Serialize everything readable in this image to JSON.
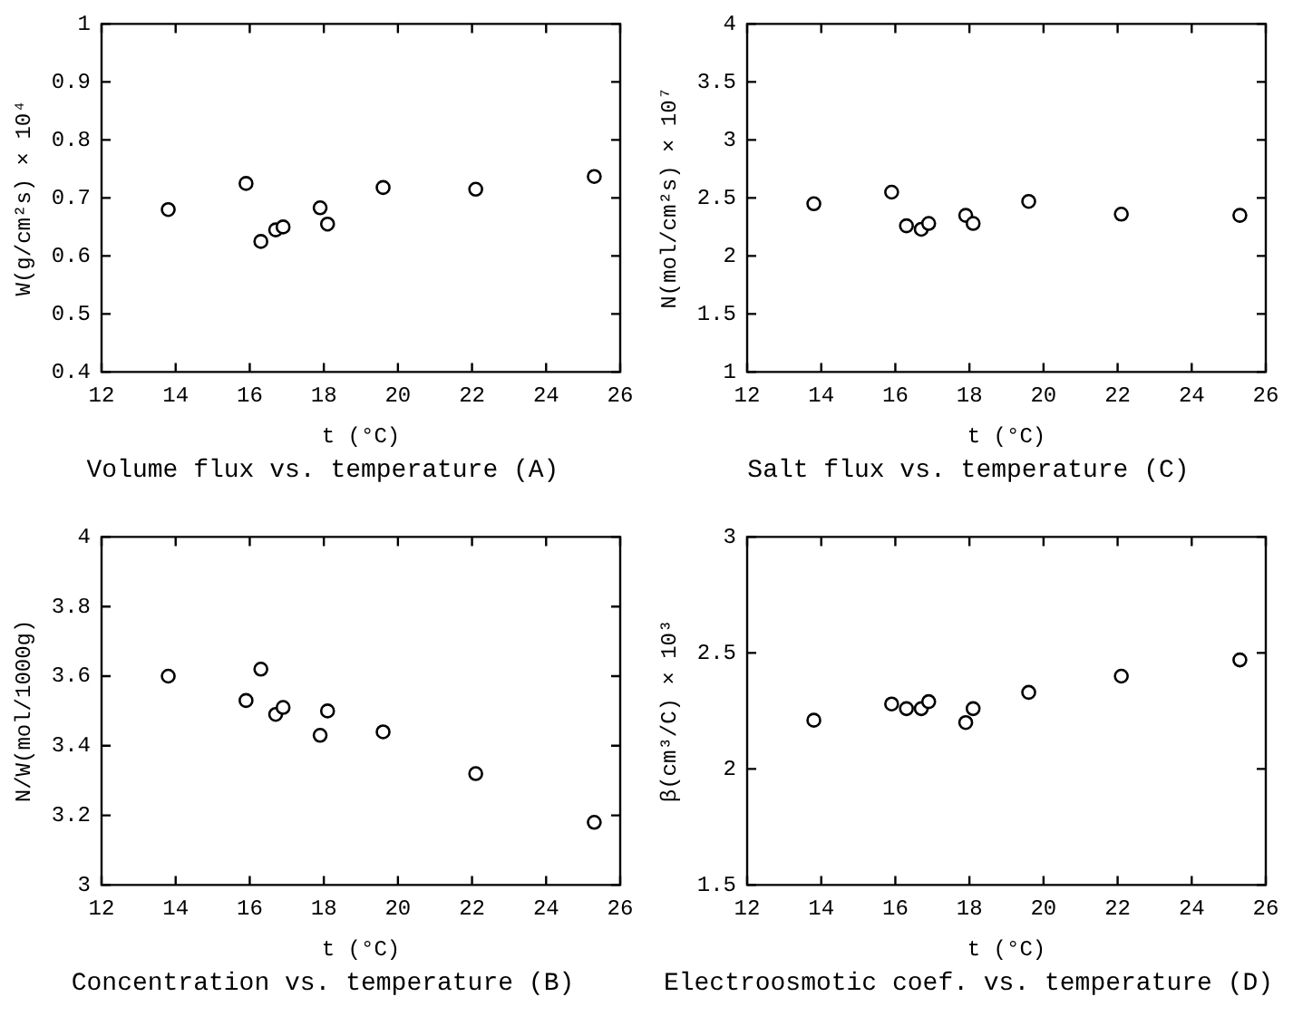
{
  "chart_data": [
    {
      "type": "scatter",
      "title": "Volume flux vs. temperature (A)",
      "xlabel": "t (°C)",
      "ylabel": "W(g/cm²s) × 10⁴",
      "x": [
        13.8,
        15.9,
        16.3,
        16.7,
        16.9,
        17.9,
        18.1,
        19.6,
        22.1,
        25.3
      ],
      "series": [
        {
          "color": "#000000",
          "values": [
            0.68,
            0.725,
            0.625,
            0.645,
            0.65,
            0.683,
            0.655,
            0.718,
            0.715,
            0.737
          ]
        }
      ],
      "xlim": [
        12,
        26
      ],
      "xticks": [
        12,
        14,
        16,
        18,
        20,
        22,
        24,
        26
      ],
      "ylim": [
        0.4,
        1
      ],
      "yticks": [
        0.4,
        0.5,
        0.6,
        0.7,
        0.8,
        0.9,
        1
      ],
      "marker": "circle",
      "grid": false,
      "legend": false
    },
    {
      "type": "scatter",
      "title": "Salt flux vs. temperature (C)",
      "xlabel": "t (°C)",
      "ylabel": "N(mol/cm²s) × 10⁷",
      "x": [
        13.8,
        15.9,
        16.3,
        16.7,
        16.9,
        17.9,
        18.1,
        19.6,
        22.1,
        25.3
      ],
      "series": [
        {
          "color": "#000000",
          "values": [
            2.45,
            2.55,
            2.26,
            2.23,
            2.28,
            2.35,
            2.28,
            2.47,
            2.36,
            2.35
          ]
        }
      ],
      "xlim": [
        12,
        26
      ],
      "xticks": [
        12,
        14,
        16,
        18,
        20,
        22,
        24,
        26
      ],
      "ylim": [
        1,
        4
      ],
      "yticks": [
        1,
        1.5,
        2,
        2.5,
        3,
        3.5,
        4
      ],
      "marker": "circle",
      "grid": false,
      "legend": false
    },
    {
      "type": "scatter",
      "title": "Concentration vs. temperature (B)",
      "xlabel": "t (°C)",
      "ylabel": "N/W(mol/1000g)",
      "x": [
        13.8,
        15.9,
        16.3,
        16.7,
        16.9,
        17.9,
        18.1,
        19.6,
        22.1,
        25.3
      ],
      "series": [
        {
          "color": "#000000",
          "values": [
            3.6,
            3.53,
            3.62,
            3.49,
            3.51,
            3.43,
            3.5,
            3.44,
            3.32,
            3.18
          ]
        }
      ],
      "xlim": [
        12,
        26
      ],
      "xticks": [
        12,
        14,
        16,
        18,
        20,
        22,
        24,
        26
      ],
      "ylim": [
        3,
        4
      ],
      "yticks": [
        3,
        3.2,
        3.4,
        3.6,
        3.8,
        4
      ],
      "marker": "circle",
      "grid": false,
      "legend": false
    },
    {
      "type": "scatter",
      "title": "Electroosmotic coef. vs. temperature (D)",
      "xlabel": "t (°C)",
      "ylabel": "β(cm³/C) × 10³",
      "x": [
        13.8,
        15.9,
        16.3,
        16.7,
        16.9,
        17.9,
        18.1,
        19.6,
        22.1,
        25.3
      ],
      "series": [
        {
          "color": "#000000",
          "values": [
            2.21,
            2.28,
            2.26,
            2.26,
            2.29,
            2.2,
            2.26,
            2.33,
            2.4,
            2.47
          ]
        }
      ],
      "xlim": [
        12,
        26
      ],
      "xticks": [
        12,
        14,
        16,
        18,
        20,
        22,
        24,
        26
      ],
      "ylim": [
        1.5,
        3
      ],
      "yticks": [
        1.5,
        2,
        2.5,
        3
      ],
      "marker": "circle",
      "grid": false,
      "legend": false
    }
  ]
}
